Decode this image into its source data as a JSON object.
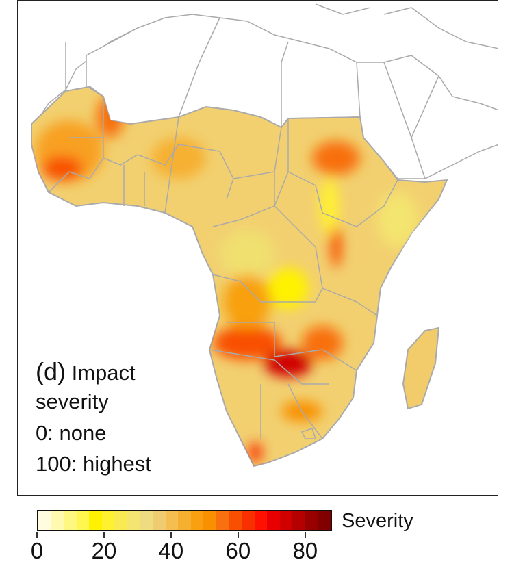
{
  "panel_label": "(d)",
  "annotation_lines": [
    "Impact",
    "severity",
    "0: none",
    "100: highest"
  ],
  "legend": {
    "title": "Severity",
    "range": [
      0,
      88
    ],
    "ticks": [
      "0",
      "20",
      "40",
      "60",
      "80"
    ],
    "tick_values": [
      0,
      20,
      40,
      60,
      80
    ],
    "colors": [
      "#fffce0",
      "#fffab0",
      "#fff880",
      "#fff650",
      "#fff200",
      "#fff030",
      "#f8ea50",
      "#f4e470",
      "#eedc80",
      "#f0cc70",
      "#f4be50",
      "#f6b030",
      "#f8a010",
      "#f89000",
      "#f87010",
      "#f85000",
      "#f83000",
      "#ff1000",
      "#e80000",
      "#d00000",
      "#b40000",
      "#980000",
      "#800000"
    ]
  },
  "map": {
    "region": "Africa",
    "background_land_color": "#ffffff",
    "border_color": "#aaaaaa",
    "base_fill_color": "#f2d070"
  }
}
